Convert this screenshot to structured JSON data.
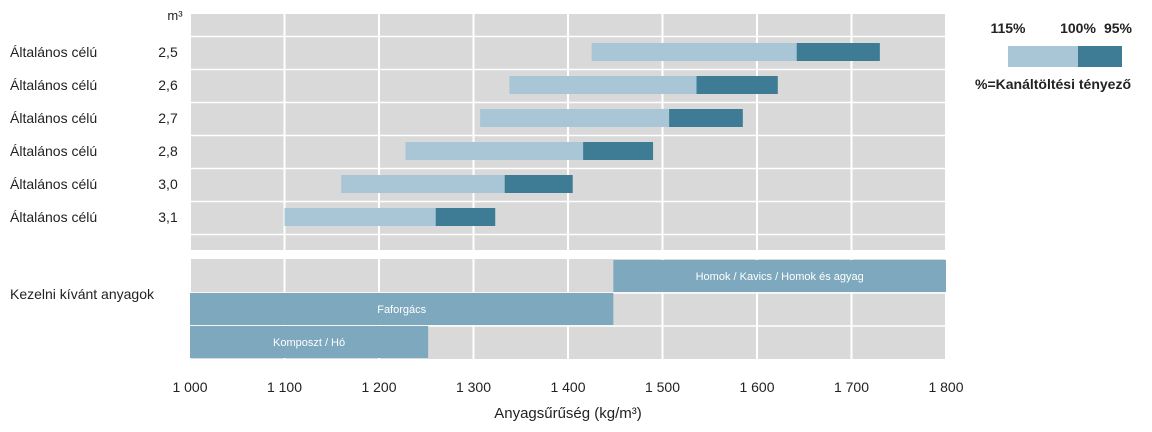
{
  "chart_data": {
    "type": "bar",
    "subtype": "floating-range",
    "y_unit_label": "m³",
    "xlabel": "Anyagsűrűség (kg/m³)",
    "xlim": [
      1000,
      1800
    ],
    "xticks": [
      1000,
      1100,
      1200,
      1300,
      1400,
      1500,
      1600,
      1700,
      1800
    ],
    "xtick_labels": [
      "1 000",
      "1 100",
      "1 200",
      "1 300",
      "1 400",
      "1 500",
      "1 600",
      "1 700",
      "1 800"
    ],
    "grid": true,
    "buckets": [
      {
        "label": "Általános célú",
        "volume": "2,5",
        "start_115": 1425,
        "mid_100": 1642,
        "end_95": 1730
      },
      {
        "label": "Általános célú",
        "volume": "2,6",
        "start_115": 1338,
        "mid_100": 1536,
        "end_95": 1622
      },
      {
        "label": "Általános célú",
        "volume": "2,7",
        "start_115": 1307,
        "mid_100": 1507,
        "end_95": 1585
      },
      {
        "label": "Általános célú",
        "volume": "2,8",
        "start_115": 1228,
        "mid_100": 1416,
        "end_95": 1490
      },
      {
        "label": "Általános célú",
        "volume": "3,0",
        "start_115": 1160,
        "mid_100": 1333,
        "end_95": 1405
      },
      {
        "label": "Általános célú",
        "volume": "3,1",
        "start_115": 1100,
        "mid_100": 1260,
        "end_95": 1323
      }
    ],
    "materials_label": "Kezelni kívánt anyagok",
    "materials": [
      {
        "name": "Homok / Kavics / Homok és agyag",
        "start": 1448,
        "end": 1800
      },
      {
        "name": "Faforgács",
        "start": 1000,
        "end": 1448
      },
      {
        "name": "Komposzt / Hó",
        "start": 1000,
        "end": 1252
      }
    ],
    "legend": {
      "labels": [
        "115%",
        "100%",
        "95%"
      ],
      "caption": "%=Kanáltöltési tényező",
      "placement": "top-right"
    },
    "colors": {
      "range_115_100": "#a9c6d6",
      "range_100_95": "#3e7b94",
      "material": "#7ea8bd",
      "panel": "#d9d9d9",
      "grid": "#ffffff"
    }
  }
}
